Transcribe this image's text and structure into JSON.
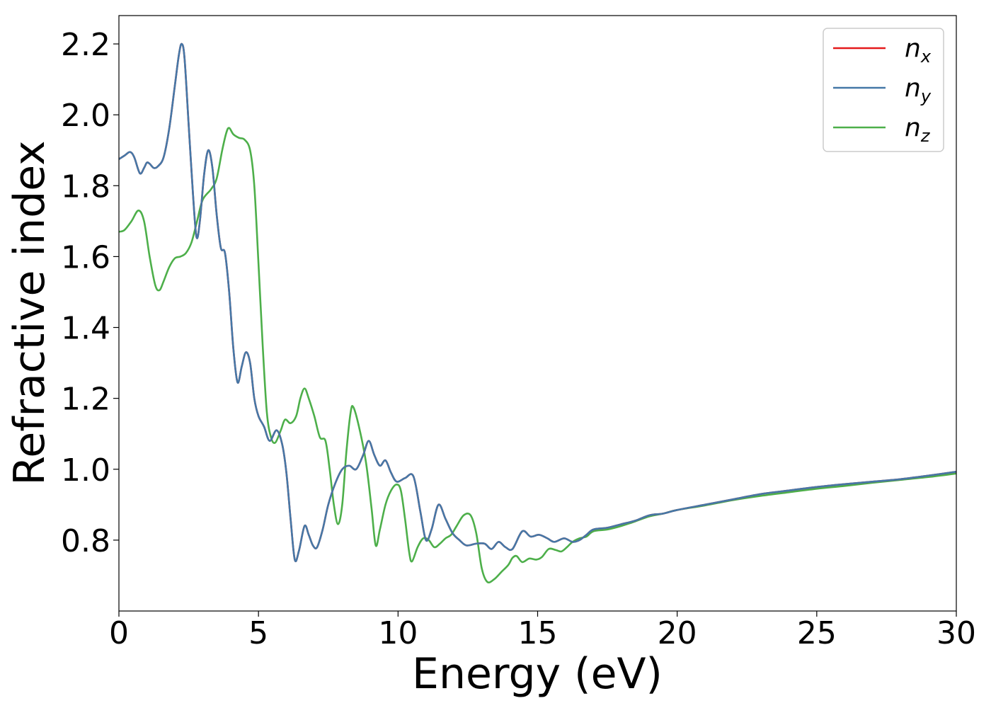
{
  "chart_data": {
    "type": "line",
    "xlabel": "Energy (eV)",
    "ylabel": "Refractive index",
    "xlim": [
      0,
      30
    ],
    "ylim": [
      0.6,
      2.28
    ],
    "xticks": [
      "0",
      "5",
      "10",
      "15",
      "20",
      "25",
      "30"
    ],
    "yticks": [
      "0.8",
      "1.0",
      "1.2",
      "1.4",
      "1.6",
      "1.8",
      "2.0",
      "2.2"
    ],
    "grid": false,
    "legend_position": "top-right",
    "series": [
      {
        "name": "n",
        "subscript": "x",
        "color": "#e41a1c",
        "points": [
          [
            0,
            1.875
          ],
          [
            0.2,
            1.885
          ],
          [
            0.4,
            1.895
          ],
          [
            0.55,
            1.88
          ],
          [
            0.75,
            1.835
          ],
          [
            0.9,
            1.85
          ],
          [
            1.0,
            1.865
          ],
          [
            1.1,
            1.862
          ],
          [
            1.25,
            1.85
          ],
          [
            1.4,
            1.855
          ],
          [
            1.6,
            1.88
          ],
          [
            1.8,
            1.96
          ],
          [
            2.0,
            2.08
          ],
          [
            2.15,
            2.17
          ],
          [
            2.25,
            2.2
          ],
          [
            2.35,
            2.16
          ],
          [
            2.5,
            1.97
          ],
          [
            2.65,
            1.78
          ],
          [
            2.78,
            1.655
          ],
          [
            2.9,
            1.7
          ],
          [
            3.05,
            1.83
          ],
          [
            3.2,
            1.9
          ],
          [
            3.35,
            1.85
          ],
          [
            3.5,
            1.72
          ],
          [
            3.65,
            1.625
          ],
          [
            3.8,
            1.61
          ],
          [
            3.95,
            1.5
          ],
          [
            4.1,
            1.34
          ],
          [
            4.25,
            1.245
          ],
          [
            4.4,
            1.29
          ],
          [
            4.55,
            1.33
          ],
          [
            4.7,
            1.3
          ],
          [
            4.85,
            1.2
          ],
          [
            5.0,
            1.15
          ],
          [
            5.2,
            1.12
          ],
          [
            5.4,
            1.08
          ],
          [
            5.65,
            1.11
          ],
          [
            5.85,
            1.07
          ],
          [
            6.0,
            0.99
          ],
          [
            6.15,
            0.86
          ],
          [
            6.3,
            0.745
          ],
          [
            6.45,
            0.77
          ],
          [
            6.65,
            0.84
          ],
          [
            6.8,
            0.815
          ],
          [
            6.95,
            0.785
          ],
          [
            7.1,
            0.78
          ],
          [
            7.3,
            0.83
          ],
          [
            7.5,
            0.9
          ],
          [
            7.75,
            0.96
          ],
          [
            8.0,
            1.0
          ],
          [
            8.25,
            1.01
          ],
          [
            8.5,
            1.0
          ],
          [
            8.75,
            1.04
          ],
          [
            8.95,
            1.08
          ],
          [
            9.15,
            1.04
          ],
          [
            9.35,
            1.01
          ],
          [
            9.55,
            1.025
          ],
          [
            9.75,
            0.99
          ],
          [
            9.95,
            0.965
          ],
          [
            10.25,
            0.975
          ],
          [
            10.55,
            0.98
          ],
          [
            10.8,
            0.88
          ],
          [
            11.0,
            0.8
          ],
          [
            11.2,
            0.83
          ],
          [
            11.45,
            0.9
          ],
          [
            11.7,
            0.86
          ],
          [
            11.95,
            0.82
          ],
          [
            12.2,
            0.8
          ],
          [
            12.45,
            0.785
          ],
          [
            12.8,
            0.79
          ],
          [
            13.1,
            0.79
          ],
          [
            13.35,
            0.775
          ],
          [
            13.6,
            0.795
          ],
          [
            13.85,
            0.78
          ],
          [
            14.1,
            0.775
          ],
          [
            14.45,
            0.825
          ],
          [
            14.75,
            0.81
          ],
          [
            15.05,
            0.815
          ],
          [
            15.35,
            0.805
          ],
          [
            15.6,
            0.795
          ],
          [
            15.95,
            0.805
          ],
          [
            16.25,
            0.795
          ],
          [
            16.5,
            0.8
          ],
          [
            16.75,
            0.815
          ],
          [
            17.0,
            0.83
          ],
          [
            17.5,
            0.835
          ],
          [
            18.0,
            0.845
          ],
          [
            18.5,
            0.855
          ],
          [
            19.0,
            0.87
          ],
          [
            19.5,
            0.875
          ],
          [
            20.0,
            0.885
          ],
          [
            21.0,
            0.9
          ],
          [
            22.0,
            0.915
          ],
          [
            23.0,
            0.93
          ],
          [
            24.0,
            0.94
          ],
          [
            25.0,
            0.95
          ],
          [
            26.0,
            0.958
          ],
          [
            27.0,
            0.965
          ],
          [
            28.0,
            0.972
          ],
          [
            29.0,
            0.982
          ],
          [
            30.0,
            0.993
          ]
        ]
      },
      {
        "name": "n",
        "subscript": "y",
        "color": "#4578a7",
        "points": [
          [
            0,
            1.875
          ],
          [
            0.2,
            1.885
          ],
          [
            0.4,
            1.895
          ],
          [
            0.55,
            1.88
          ],
          [
            0.75,
            1.835
          ],
          [
            0.9,
            1.85
          ],
          [
            1.0,
            1.865
          ],
          [
            1.1,
            1.862
          ],
          [
            1.25,
            1.85
          ],
          [
            1.4,
            1.855
          ],
          [
            1.6,
            1.88
          ],
          [
            1.8,
            1.96
          ],
          [
            2.0,
            2.08
          ],
          [
            2.15,
            2.17
          ],
          [
            2.25,
            2.2
          ],
          [
            2.35,
            2.16
          ],
          [
            2.5,
            1.97
          ],
          [
            2.65,
            1.78
          ],
          [
            2.78,
            1.655
          ],
          [
            2.9,
            1.7
          ],
          [
            3.05,
            1.83
          ],
          [
            3.2,
            1.9
          ],
          [
            3.35,
            1.85
          ],
          [
            3.5,
            1.72
          ],
          [
            3.65,
            1.625
          ],
          [
            3.8,
            1.61
          ],
          [
            3.95,
            1.5
          ],
          [
            4.1,
            1.34
          ],
          [
            4.25,
            1.245
          ],
          [
            4.4,
            1.29
          ],
          [
            4.55,
            1.33
          ],
          [
            4.7,
            1.3
          ],
          [
            4.85,
            1.2
          ],
          [
            5.0,
            1.15
          ],
          [
            5.2,
            1.12
          ],
          [
            5.4,
            1.08
          ],
          [
            5.65,
            1.11
          ],
          [
            5.85,
            1.07
          ],
          [
            6.0,
            0.99
          ],
          [
            6.15,
            0.86
          ],
          [
            6.3,
            0.745
          ],
          [
            6.45,
            0.77
          ],
          [
            6.65,
            0.84
          ],
          [
            6.8,
            0.815
          ],
          [
            6.95,
            0.785
          ],
          [
            7.1,
            0.78
          ],
          [
            7.3,
            0.83
          ],
          [
            7.5,
            0.9
          ],
          [
            7.75,
            0.96
          ],
          [
            8.0,
            1.0
          ],
          [
            8.25,
            1.01
          ],
          [
            8.5,
            1.0
          ],
          [
            8.75,
            1.04
          ],
          [
            8.95,
            1.08
          ],
          [
            9.15,
            1.04
          ],
          [
            9.35,
            1.01
          ],
          [
            9.55,
            1.025
          ],
          [
            9.75,
            0.99
          ],
          [
            9.95,
            0.965
          ],
          [
            10.25,
            0.975
          ],
          [
            10.55,
            0.98
          ],
          [
            10.8,
            0.88
          ],
          [
            11.0,
            0.8
          ],
          [
            11.2,
            0.83
          ],
          [
            11.45,
            0.9
          ],
          [
            11.7,
            0.86
          ],
          [
            11.95,
            0.82
          ],
          [
            12.2,
            0.8
          ],
          [
            12.45,
            0.785
          ],
          [
            12.8,
            0.79
          ],
          [
            13.1,
            0.79
          ],
          [
            13.35,
            0.775
          ],
          [
            13.6,
            0.795
          ],
          [
            13.85,
            0.78
          ],
          [
            14.1,
            0.775
          ],
          [
            14.45,
            0.825
          ],
          [
            14.75,
            0.81
          ],
          [
            15.05,
            0.815
          ],
          [
            15.35,
            0.805
          ],
          [
            15.6,
            0.795
          ],
          [
            15.95,
            0.805
          ],
          [
            16.25,
            0.795
          ],
          [
            16.5,
            0.8
          ],
          [
            16.75,
            0.815
          ],
          [
            17.0,
            0.83
          ],
          [
            17.5,
            0.835
          ],
          [
            18.0,
            0.845
          ],
          [
            18.5,
            0.855
          ],
          [
            19.0,
            0.87
          ],
          [
            19.5,
            0.875
          ],
          [
            20.0,
            0.885
          ],
          [
            21.0,
            0.9
          ],
          [
            22.0,
            0.915
          ],
          [
            23.0,
            0.93
          ],
          [
            24.0,
            0.94
          ],
          [
            25.0,
            0.95
          ],
          [
            26.0,
            0.958
          ],
          [
            27.0,
            0.965
          ],
          [
            28.0,
            0.972
          ],
          [
            29.0,
            0.982
          ],
          [
            30.0,
            0.993
          ]
        ]
      },
      {
        "name": "n",
        "subscript": "z",
        "color": "#4daf4a",
        "points": [
          [
            0,
            1.67
          ],
          [
            0.2,
            1.675
          ],
          [
            0.45,
            1.7
          ],
          [
            0.7,
            1.73
          ],
          [
            0.9,
            1.7
          ],
          [
            1.1,
            1.6
          ],
          [
            1.3,
            1.52
          ],
          [
            1.45,
            1.505
          ],
          [
            1.6,
            1.53
          ],
          [
            1.8,
            1.57
          ],
          [
            2.0,
            1.595
          ],
          [
            2.2,
            1.6
          ],
          [
            2.4,
            1.61
          ],
          [
            2.6,
            1.64
          ],
          [
            2.8,
            1.7
          ],
          [
            3.0,
            1.76
          ],
          [
            3.3,
            1.79
          ],
          [
            3.5,
            1.82
          ],
          [
            3.7,
            1.9
          ],
          [
            3.85,
            1.95
          ],
          [
            3.95,
            1.963
          ],
          [
            4.1,
            1.945
          ],
          [
            4.3,
            1.935
          ],
          [
            4.5,
            1.93
          ],
          [
            4.7,
            1.9
          ],
          [
            4.85,
            1.8
          ],
          [
            5.0,
            1.58
          ],
          [
            5.15,
            1.35
          ],
          [
            5.3,
            1.16
          ],
          [
            5.45,
            1.09
          ],
          [
            5.6,
            1.075
          ],
          [
            5.8,
            1.11
          ],
          [
            5.95,
            1.14
          ],
          [
            6.15,
            1.13
          ],
          [
            6.35,
            1.15
          ],
          [
            6.5,
            1.2
          ],
          [
            6.65,
            1.228
          ],
          [
            6.8,
            1.2
          ],
          [
            7.0,
            1.15
          ],
          [
            7.2,
            1.09
          ],
          [
            7.4,
            1.08
          ],
          [
            7.55,
            1.0
          ],
          [
            7.7,
            0.9
          ],
          [
            7.85,
            0.845
          ],
          [
            8.0,
            0.9
          ],
          [
            8.15,
            1.05
          ],
          [
            8.3,
            1.16
          ],
          [
            8.4,
            1.175
          ],
          [
            8.6,
            1.12
          ],
          [
            8.85,
            1.02
          ],
          [
            9.05,
            0.89
          ],
          [
            9.2,
            0.785
          ],
          [
            9.35,
            0.83
          ],
          [
            9.55,
            0.9
          ],
          [
            9.75,
            0.94
          ],
          [
            9.95,
            0.957
          ],
          [
            10.1,
            0.94
          ],
          [
            10.25,
            0.86
          ],
          [
            10.4,
            0.765
          ],
          [
            10.5,
            0.74
          ],
          [
            10.7,
            0.78
          ],
          [
            10.9,
            0.805
          ],
          [
            11.1,
            0.8
          ],
          [
            11.3,
            0.78
          ],
          [
            11.5,
            0.79
          ],
          [
            11.7,
            0.805
          ],
          [
            11.9,
            0.815
          ],
          [
            12.1,
            0.84
          ],
          [
            12.35,
            0.87
          ],
          [
            12.6,
            0.87
          ],
          [
            12.8,
            0.82
          ],
          [
            13.0,
            0.72
          ],
          [
            13.2,
            0.682
          ],
          [
            13.45,
            0.69
          ],
          [
            13.7,
            0.71
          ],
          [
            13.95,
            0.73
          ],
          [
            14.1,
            0.75
          ],
          [
            14.25,
            0.755
          ],
          [
            14.45,
            0.738
          ],
          [
            14.7,
            0.748
          ],
          [
            14.95,
            0.745
          ],
          [
            15.15,
            0.752
          ],
          [
            15.4,
            0.775
          ],
          [
            15.65,
            0.772
          ],
          [
            15.85,
            0.768
          ],
          [
            16.05,
            0.78
          ],
          [
            16.25,
            0.795
          ],
          [
            16.5,
            0.805
          ],
          [
            16.75,
            0.81
          ],
          [
            17.0,
            0.825
          ],
          [
            17.5,
            0.83
          ],
          [
            18.0,
            0.84
          ],
          [
            18.5,
            0.853
          ],
          [
            19.0,
            0.867
          ],
          [
            19.5,
            0.875
          ],
          [
            20.0,
            0.885
          ],
          [
            21.0,
            0.898
          ],
          [
            22.0,
            0.913
          ],
          [
            23.0,
            0.925
          ],
          [
            24.0,
            0.935
          ],
          [
            25.0,
            0.945
          ],
          [
            26.0,
            0.953
          ],
          [
            27.0,
            0.962
          ],
          [
            28.0,
            0.97
          ],
          [
            29.0,
            0.978
          ],
          [
            30.0,
            0.988
          ]
        ]
      }
    ]
  }
}
